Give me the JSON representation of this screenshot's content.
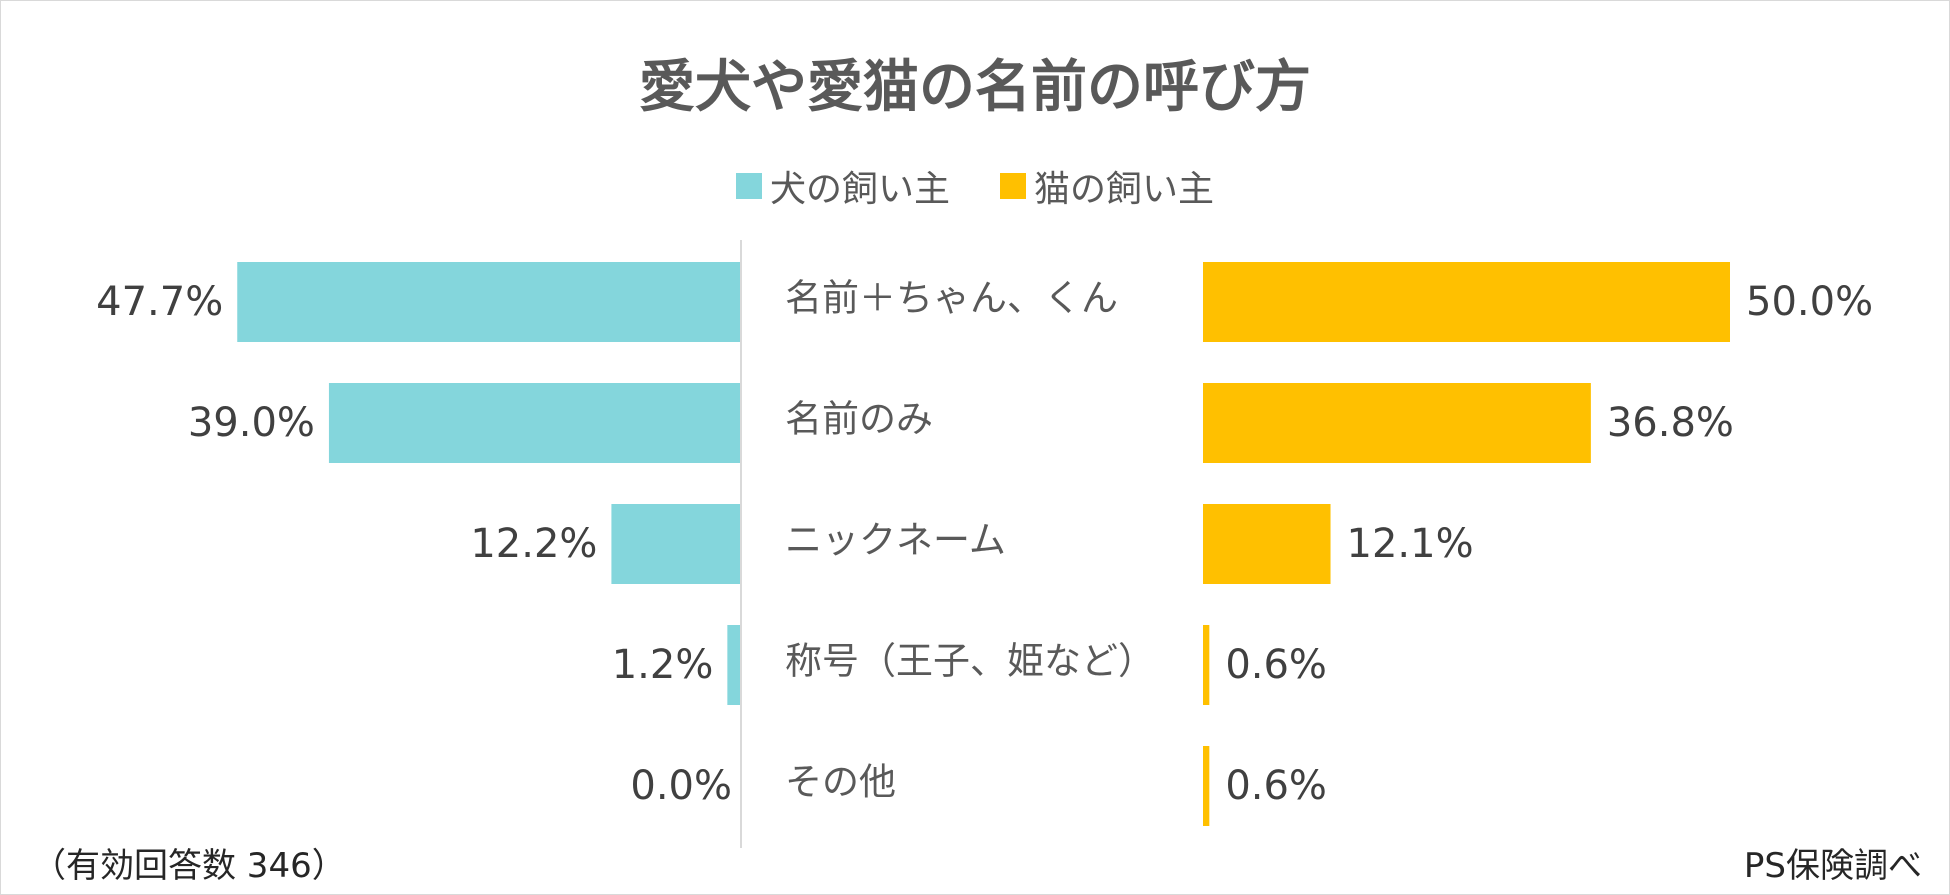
{
  "chart_data": {
    "type": "bar",
    "title": "愛犬や愛猫の名前の呼び方",
    "categories": [
      "名前＋ちゃん、くん",
      "名前のみ",
      "ニックネーム",
      "称号（王子、姫など）",
      "その他"
    ],
    "series": [
      {
        "name": "犬の飼い主",
        "values": [
          47.7,
          39.0,
          12.2,
          1.2,
          0.0
        ],
        "labels": [
          "47.7%",
          "39.0%",
          "12.2%",
          "1.2%",
          "0.0%"
        ],
        "color": "#84D6DC"
      },
      {
        "name": "猫の飼い主",
        "values": [
          50.0,
          36.8,
          12.1,
          0.6,
          0.6
        ],
        "labels": [
          "50.0%",
          "36.8%",
          "12.1%",
          "0.6%",
          "0.6%"
        ],
        "color": "#FFC000"
      }
    ],
    "legend": "top-center",
    "grid": false
  },
  "footnote": "（有効回答数 346）",
  "source": "PS保険調べ"
}
